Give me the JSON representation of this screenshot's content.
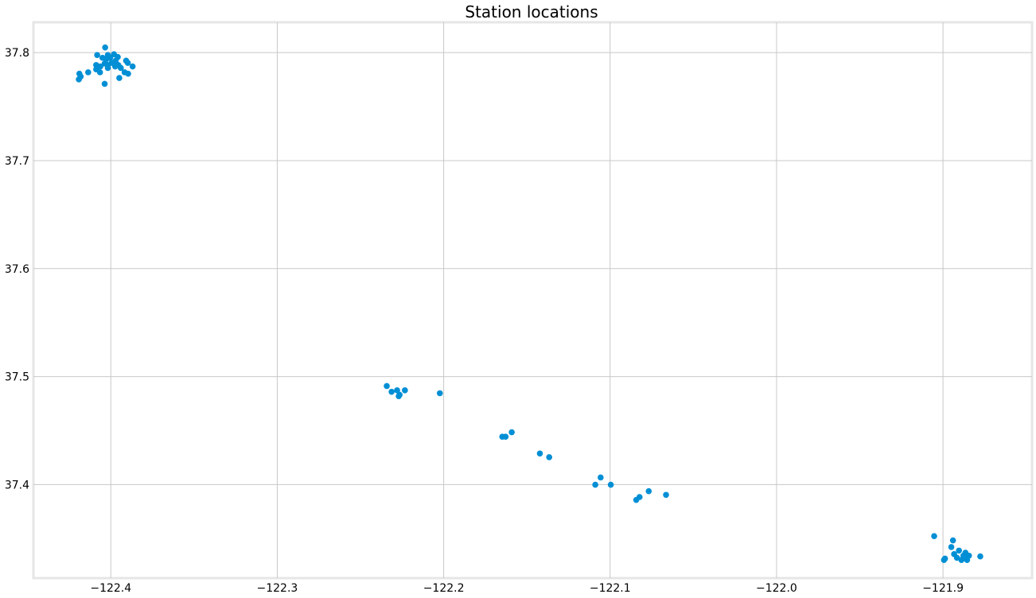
{
  "chart_data": {
    "type": "scatter",
    "title": "Station locations",
    "xlabel": "",
    "ylabel": "",
    "xlim": [
      -122.4465,
      -121.8465
    ],
    "ylim": [
      37.3134,
      37.8281
    ],
    "xticks": [
      -122.4,
      -122.3,
      -122.2,
      -122.1,
      -122.0,
      -121.9
    ],
    "xtick_labels": [
      "−122.4",
      "−122.3",
      "−122.2",
      "−122.1",
      "−122.0",
      "−121.9"
    ],
    "yticks": [
      37.4,
      37.5,
      37.6,
      37.7,
      37.8
    ],
    "ytick_labels": [
      "37.4",
      "37.5",
      "37.6",
      "37.7",
      "37.8"
    ],
    "grid": true,
    "legend": "none",
    "marker_color": "#008fd5",
    "series": [
      {
        "points": [
          [
            -122.4034,
            37.8048
          ],
          [
            -122.3981,
            37.7985
          ],
          [
            -122.4018,
            37.7978
          ],
          [
            -122.4082,
            37.7978
          ],
          [
            -122.3958,
            37.7959
          ],
          [
            -122.405,
            37.7952
          ],
          [
            -122.4004,
            37.7952
          ],
          [
            -122.4027,
            37.7939
          ],
          [
            -122.3908,
            37.7925
          ],
          [
            -122.3971,
            37.7925
          ],
          [
            -122.3898,
            37.7905
          ],
          [
            -122.3995,
            37.7905
          ],
          [
            -122.4037,
            37.7899
          ],
          [
            -122.4088,
            37.7885
          ],
          [
            -122.4018,
            37.7885
          ],
          [
            -122.3955,
            37.7885
          ],
          [
            -122.4063,
            37.7872
          ],
          [
            -122.3974,
            37.7872
          ],
          [
            -122.3869,
            37.7872
          ],
          [
            -122.4018,
            37.7858
          ],
          [
            -122.394,
            37.7858
          ],
          [
            -122.4088,
            37.7845
          ],
          [
            -122.4136,
            37.7818
          ],
          [
            -122.4065,
            37.7818
          ],
          [
            -122.3917,
            37.7818
          ],
          [
            -122.3896,
            37.7805
          ],
          [
            -122.4189,
            37.7805
          ],
          [
            -122.4181,
            37.7778
          ],
          [
            -122.3949,
            37.7765
          ],
          [
            -122.4192,
            37.7752
          ],
          [
            -122.4037,
            37.7711
          ],
          [
            -122.2342,
            37.4913
          ],
          [
            -122.228,
            37.4873
          ],
          [
            -122.2313,
            37.4859
          ],
          [
            -122.2233,
            37.4873
          ],
          [
            -122.2023,
            37.4846
          ],
          [
            -122.2265,
            37.4832
          ],
          [
            -122.227,
            37.4819
          ],
          [
            -122.1591,
            37.4485
          ],
          [
            -122.1628,
            37.4443
          ],
          [
            -122.1648,
            37.4443
          ],
          [
            -122.1422,
            37.4288
          ],
          [
            -122.1366,
            37.4254
          ],
          [
            -122.1057,
            37.4066
          ],
          [
            -122.1089,
            37.3999
          ],
          [
            -122.0996,
            37.3999
          ],
          [
            -122.0768,
            37.3939
          ],
          [
            -122.0664,
            37.3905
          ],
          [
            -122.0823,
            37.3885
          ],
          [
            -122.0843,
            37.3858
          ],
          [
            -121.9053,
            37.3523
          ],
          [
            -121.894,
            37.3483
          ],
          [
            -121.895,
            37.3422
          ],
          [
            -121.8904,
            37.3389
          ],
          [
            -121.8865,
            37.3369
          ],
          [
            -121.8933,
            37.3356
          ],
          [
            -121.8877,
            37.3342
          ],
          [
            -121.8844,
            37.3342
          ],
          [
            -121.8776,
            37.3335
          ],
          [
            -121.8916,
            37.3322
          ],
          [
            -121.8988,
            37.3315
          ],
          [
            -121.8859,
            37.3315
          ],
          [
            -121.8994,
            37.3302
          ],
          [
            -121.8889,
            37.3302
          ],
          [
            -121.8855,
            37.3302
          ]
        ]
      }
    ]
  }
}
